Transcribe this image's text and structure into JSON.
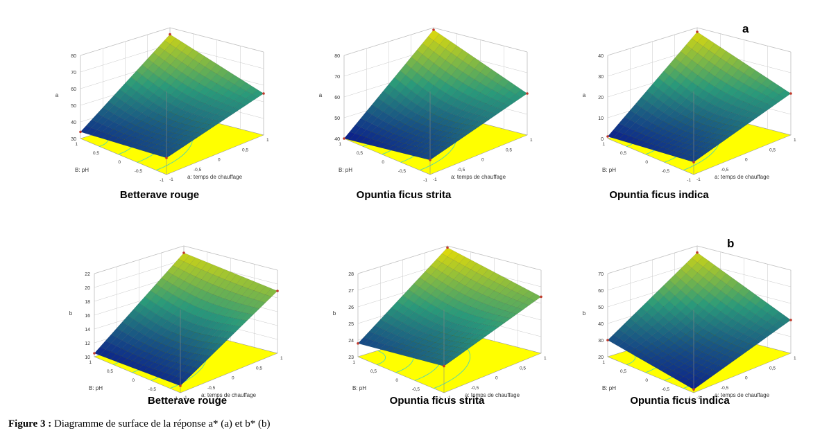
{
  "panel_letters": {
    "top": "a",
    "bottom": "b"
  },
  "figure_caption": {
    "label": "Figure 3 :",
    "text": "Diagramme de surface de la réponse a* (a) et b* (b)"
  },
  "axes_common": {
    "x_label": "A: temps de chauffage",
    "x_label_printed": "a: temps de chauffage",
    "y_label": "B: pH",
    "xy_ticks": [
      "-1",
      "-0,5",
      "0",
      "0,5",
      "1"
    ]
  },
  "chart_data": [
    {
      "type": "surface3d",
      "row": "top",
      "caption": "Betterave rouge",
      "zlabel": "a",
      "zticks": [
        "30",
        "40",
        "50",
        "60",
        "70",
        "80"
      ],
      "zlim": [
        30,
        80
      ],
      "corners": {
        "left": 34,
        "front": 40,
        "right": 55,
        "back": 76
      },
      "contours": "yellow floor with cyan contour lines"
    },
    {
      "type": "surface3d",
      "row": "top",
      "caption": "Opuntia ficus strita",
      "zlabel": "a",
      "zticks": [
        "40",
        "50",
        "60",
        "70",
        "80"
      ],
      "zlim": [
        40,
        80
      ],
      "corners": {
        "left": 40,
        "front": 47,
        "right": 60,
        "back": 79
      },
      "contours": "yellow floor with cyan contour lines"
    },
    {
      "type": "surface3d",
      "row": "top",
      "caption": "Opuntia ficus indica",
      "zlabel": "a",
      "zticks": [
        "0",
        "10",
        "20",
        "30",
        "40"
      ],
      "zlim": [
        0,
        40
      ],
      "corners": {
        "left": 1,
        "front": 6,
        "right": 20,
        "back": 38
      },
      "contours": "yellow floor with cyan contour lines"
    },
    {
      "type": "surface3d",
      "row": "bottom",
      "caption": "Betterave rouge",
      "zlabel": "b",
      "zticks": [
        "10",
        "12",
        "14",
        "16",
        "18",
        "20",
        "22"
      ],
      "zlim": [
        10,
        22
      ],
      "corners": {
        "left": 10.5,
        "front": 11,
        "right": 19,
        "back": 21
      },
      "contours": "yellow floor with cyan contour lines"
    },
    {
      "type": "surface3d",
      "row": "bottom",
      "caption": "Opuntia ficus strita",
      "zlabel": "b",
      "zticks": [
        "23",
        "24",
        "25",
        "26",
        "27",
        "28"
      ],
      "zlim": [
        23,
        28
      ],
      "corners": {
        "left": 23.8,
        "front": 24.6,
        "right": 26.4,
        "back": 27.9
      },
      "contours": "yellow floor with cyan contour lines"
    },
    {
      "type": "surface3d",
      "row": "bottom",
      "caption": "Opuntia ficus indica",
      "zlabel": "b",
      "zticks": [
        "20",
        "30",
        "40",
        "50",
        "60",
        "70"
      ],
      "zlim": [
        20,
        70
      ],
      "corners": {
        "left": 30,
        "front": 22,
        "right": 40,
        "back": 66
      },
      "contours": "yellow floor with cyan contour lines"
    }
  ],
  "colors": {
    "floor": "#ffff00",
    "contour": "#3ad0c8",
    "surface_low": "#0a1a8c",
    "surface_mid": "#2a9a7a",
    "surface_high": "#f0e000",
    "marker": "#c0392b"
  }
}
